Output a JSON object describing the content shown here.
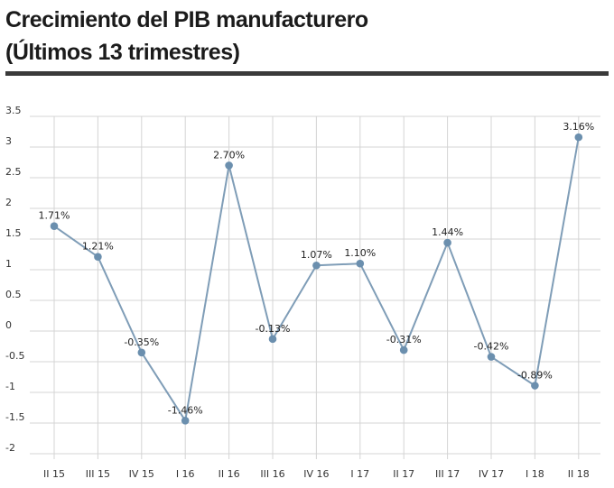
{
  "header": {
    "title_line1": "Crecimiento del PIB manufacturero",
    "title_line2": "(Últimos 13 trimestres)"
  },
  "chart_data": {
    "type": "line",
    "title": "Crecimiento del PIB manufacturero (Últimos 13 trimestres)",
    "categories": [
      "II 15",
      "III 15",
      "IV 15",
      "I 16",
      "II 16",
      "III 16",
      "IV 16",
      "I 17",
      "II 17",
      "III 17",
      "IV 17",
      "I 18",
      "II 18"
    ],
    "series": [
      {
        "values": [
          1.71,
          1.21,
          -0.35,
          -1.46,
          2.7,
          -0.13,
          1.07,
          1.1,
          -0.31,
          1.44,
          -0.42,
          -0.89,
          3.16
        ],
        "labels": [
          "1.71%",
          "1.21%",
          "-0.35%",
          "-1.46%",
          "2.70%",
          "-0.13%",
          "1.07%",
          "1.10%",
          "-0.31%",
          "1.44%",
          "-0.42%",
          "-0.89%",
          "3.16%"
        ]
      }
    ],
    "yticks": [
      "3.5",
      "3",
      "2.5",
      "2",
      "1.5",
      "1",
      "0.5",
      "0",
      "-0.5",
      "-1",
      "-1.5",
      "-2"
    ],
    "ylim": [
      -2,
      3.5
    ],
    "xlabel": "",
    "ylabel": "",
    "grid": true,
    "colors": {
      "line": "#7f9db7",
      "marker": "#6b8fae",
      "grid": "#d4d4d4"
    }
  }
}
